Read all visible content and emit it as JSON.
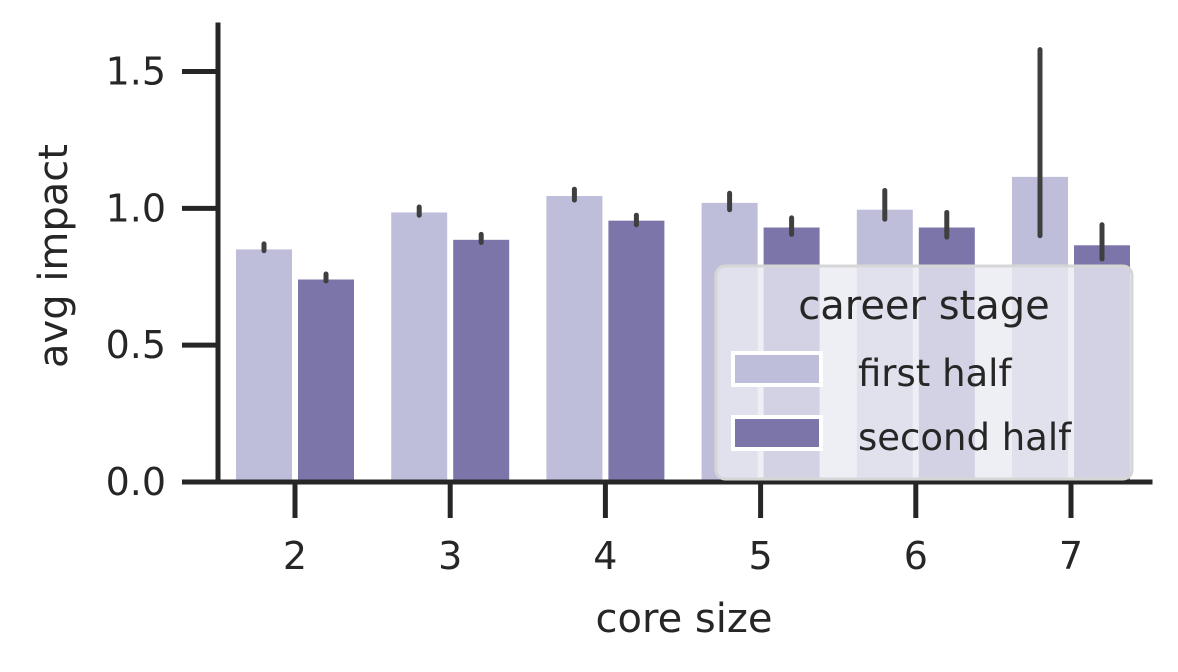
{
  "chart_data": {
    "type": "bar",
    "xlabel": "core size",
    "ylabel": "avg impact",
    "categories": [
      "2",
      "3",
      "4",
      "5",
      "6",
      "7"
    ],
    "ylim": [
      0,
      1.67
    ],
    "yticks": [
      "0.0",
      "0.5",
      "1.0",
      "1.5"
    ],
    "grid": false,
    "legend": {
      "title": "career stage",
      "placement": "lower-right"
    },
    "series": [
      {
        "name": "first half",
        "color": "#bebedb",
        "values": [
          0.85,
          0.985,
          1.045,
          1.02,
          0.995,
          1.115
        ],
        "err_low": [
          0.845,
          0.975,
          1.03,
          0.995,
          0.96,
          0.9
        ],
        "err_high": [
          0.87,
          1.005,
          1.07,
          1.055,
          1.065,
          1.58
        ]
      },
      {
        "name": "second half",
        "color": "#7b75a9",
        "values": [
          0.74,
          0.885,
          0.955,
          0.93,
          0.93,
          0.865
        ],
        "err_low": [
          0.735,
          0.875,
          0.94,
          0.905,
          0.895,
          0.815
        ],
        "err_high": [
          0.76,
          0.905,
          0.975,
          0.965,
          0.985,
          0.94
        ]
      }
    ]
  }
}
